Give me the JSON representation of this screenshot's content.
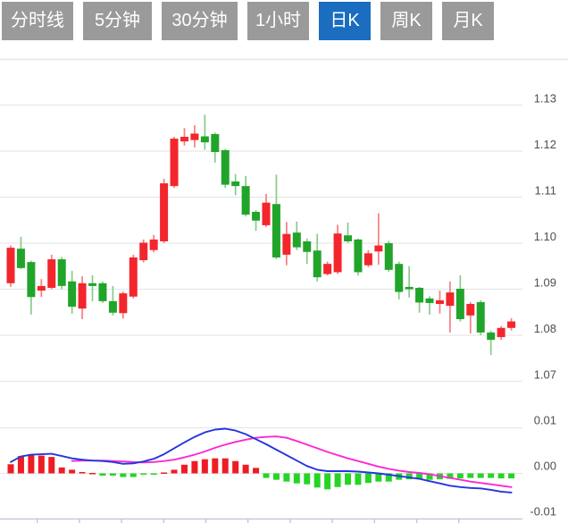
{
  "tab_bar": {
    "active_index": 4,
    "items": [
      {
        "label": "分时线"
      },
      {
        "label": "5分钟"
      },
      {
        "label": "30分钟"
      },
      {
        "label": "1小时"
      },
      {
        "label": "日K"
      },
      {
        "label": "周K"
      },
      {
        "label": "月K"
      }
    ],
    "colors": {
      "tab_bg": "#9a9a9a",
      "tab_active_bg": "#1a6dbf",
      "tab_text": "#ffffff"
    }
  },
  "chart_data": {
    "type": "candlestick_with_macd",
    "selected_period": "日K",
    "price_axis": {
      "ticks": [
        "1.13",
        "1.12",
        "1.11",
        "1.10",
        "1.09",
        "1.08",
        "1.07"
      ],
      "top_tick_value": 1.13,
      "tick_step": 0.01,
      "grid": true,
      "position": "right"
    },
    "macd_axis": {
      "ticks": [
        "0.01",
        "0.00",
        "-0.01"
      ],
      "top_tick_value": 0.01,
      "tick_step": 0.01,
      "position": "right"
    },
    "time_axis": {
      "tick_count": 11,
      "labels_visible": false
    },
    "candles_ohlc": [
      [
        1.0913,
        1.0995,
        1.0905,
        1.099
      ],
      [
        1.0988,
        1.1014,
        1.0944,
        1.0946
      ],
      [
        1.0959,
        1.0962,
        1.0845,
        1.0883
      ],
      [
        1.0897,
        1.0922,
        1.0883,
        1.0907
      ],
      [
        1.0903,
        1.0975,
        1.09,
        1.0965
      ],
      [
        1.0965,
        1.097,
        1.09,
        1.0907
      ],
      [
        1.0917,
        1.094,
        1.0847,
        1.0862
      ],
      [
        1.0858,
        1.0928,
        1.0835,
        1.0913
      ],
      [
        1.0913,
        1.093,
        1.0874,
        1.0907
      ],
      [
        1.0913,
        1.0917,
        1.087,
        1.0874
      ],
      [
        1.0874,
        1.0907,
        1.0843,
        1.0849
      ],
      [
        1.0848,
        1.0895,
        1.0836,
        1.0891
      ],
      [
        1.0884,
        1.0975,
        1.088,
        1.0969
      ],
      [
        1.0963,
        1.1008,
        1.0958,
        1.1001
      ],
      [
        1.0985,
        1.1018,
        1.098,
        1.1008
      ],
      [
        1.1004,
        1.114,
        1.1,
        1.113
      ],
      [
        1.1124,
        1.1231,
        1.112,
        1.1227
      ],
      [
        1.1221,
        1.125,
        1.1212,
        1.1231
      ],
      [
        1.1224,
        1.1256,
        1.1208,
        1.1238
      ],
      [
        1.1232,
        1.1279,
        1.1203,
        1.1219
      ],
      [
        1.1237,
        1.124,
        1.1175,
        1.1198
      ],
      [
        1.1202,
        1.1205,
        1.112,
        1.1127
      ],
      [
        1.1134,
        1.115,
        1.1104,
        1.1124
      ],
      [
        1.1124,
        1.1146,
        1.1058,
        1.1062
      ],
      [
        1.1068,
        1.1072,
        1.1027,
        1.1049
      ],
      [
        1.1039,
        1.1107,
        1.1035,
        1.1088
      ],
      [
        1.1085,
        1.1149,
        1.0965,
        1.0969
      ],
      [
        1.0975,
        1.1046,
        1.0952,
        1.102
      ],
      [
        1.1023,
        1.1047,
        1.0985,
        1.0991
      ],
      [
        1.1004,
        1.101,
        1.0955,
        1.0981
      ],
      [
        1.0984,
        1.102,
        1.0917,
        1.0926
      ],
      [
        1.0933,
        1.096,
        1.093,
        1.0955
      ],
      [
        1.0937,
        1.104,
        1.0933,
        1.1021
      ],
      [
        1.1017,
        1.1045,
        1.1,
        1.1004
      ],
      [
        1.1008,
        1.101,
        1.093,
        1.0937
      ],
      [
        1.0952,
        1.0985,
        1.0948,
        1.0978
      ],
      [
        1.0982,
        1.1065,
        1.0953,
        1.0995
      ],
      [
        1.1,
        1.1005,
        1.0938,
        1.0942
      ],
      [
        1.0955,
        1.096,
        1.0878,
        1.0894
      ],
      [
        1.0905,
        1.095,
        1.0882,
        1.09
      ],
      [
        1.0903,
        1.0905,
        1.0849,
        1.0871
      ],
      [
        1.088,
        1.0885,
        1.0845,
        1.087
      ],
      [
        1.0868,
        1.0897,
        1.0847,
        1.0876
      ],
      [
        1.0864,
        1.0917,
        1.0806,
        1.0893
      ],
      [
        1.0901,
        1.093,
        1.083,
        1.0835
      ],
      [
        1.0843,
        1.0872,
        1.0804,
        1.0868
      ],
      [
        1.0872,
        1.0876,
        1.08,
        1.0806
      ],
      [
        1.0806,
        1.081,
        1.0757,
        1.079
      ],
      [
        1.0796,
        1.082,
        1.079,
        1.0816
      ],
      [
        1.0816,
        1.0837,
        1.081,
        1.083
      ]
    ],
    "macd": {
      "histogram": [
        0.002,
        0.0038,
        0.0041,
        0.0039,
        0.0036,
        0.0013,
        0.0008,
        0.0003,
        0.0001,
        -0.0005,
        -0.0005,
        -0.0008,
        -0.0008,
        -0.0003,
        -0.0002,
        0.0002,
        0.0008,
        0.0019,
        0.0027,
        0.0031,
        0.0033,
        0.0033,
        0.0027,
        0.0019,
        0.0012,
        -0.001,
        -0.0014,
        -0.0018,
        -0.0022,
        -0.0024,
        -0.0031,
        -0.0035,
        -0.003,
        -0.0025,
        -0.0025,
        -0.0021,
        -0.0018,
        -0.0018,
        -0.0014,
        -0.0013,
        -0.0013,
        -0.0014,
        -0.0013,
        -0.0012,
        -0.0011,
        -0.001,
        -0.001,
        -0.001,
        -0.0011,
        -0.0011
      ],
      "dif": [
        0.0025,
        0.0037,
        0.0041,
        0.0042,
        0.0043,
        0.0038,
        0.0033,
        0.003,
        0.0028,
        0.0027,
        0.0025,
        0.0021,
        0.0022,
        0.0026,
        0.0032,
        0.0042,
        0.0055,
        0.0068,
        0.008,
        0.009,
        0.0096,
        0.0098,
        0.0094,
        0.0086,
        0.0075,
        0.0064,
        0.0052,
        0.004,
        0.0028,
        0.0016,
        0.0008,
        0.0005,
        0.0005,
        0.0005,
        0.0004,
        0.0002,
        0.0,
        -0.0003,
        -0.0006,
        -0.0009,
        -0.0012,
        -0.0017,
        -0.0022,
        -0.0027,
        -0.003,
        -0.0032,
        -0.0033,
        -0.0036,
        -0.004,
        -0.0042
      ],
      "dea": [
        null,
        null,
        null,
        null,
        null,
        null,
        0.0027,
        0.0028,
        0.0028,
        0.0028,
        0.0027,
        0.0026,
        0.0025,
        0.0024,
        0.0025,
        0.0027,
        0.003,
        0.0035,
        0.0041,
        0.0048,
        0.0056,
        0.0063,
        0.0069,
        0.0074,
        0.0078,
        0.008,
        0.0081,
        0.0078,
        0.0071,
        0.0063,
        0.0055,
        0.0047,
        0.004,
        0.0033,
        0.0027,
        0.0021,
        0.0015,
        0.001,
        0.0006,
        0.0003,
        0.0001,
        -0.0002,
        -0.0006,
        -0.001,
        -0.0014,
        -0.0018,
        -0.0021,
        -0.0024,
        -0.0027,
        -0.003
      ]
    },
    "colors": {
      "up_body": "#f2262c",
      "up_wick": "#f57e81",
      "down_body": "#21a42a",
      "down_wick": "#86cc88",
      "hist_up": "#ee1c23",
      "hist_down": "#26d426",
      "dif_line": "#2336dd",
      "dea_line": "#fb2ad2",
      "grid": "#e7e7e7",
      "axis": "#bcc4d2",
      "label": "#4d4d55",
      "background": "#ffffff"
    }
  }
}
